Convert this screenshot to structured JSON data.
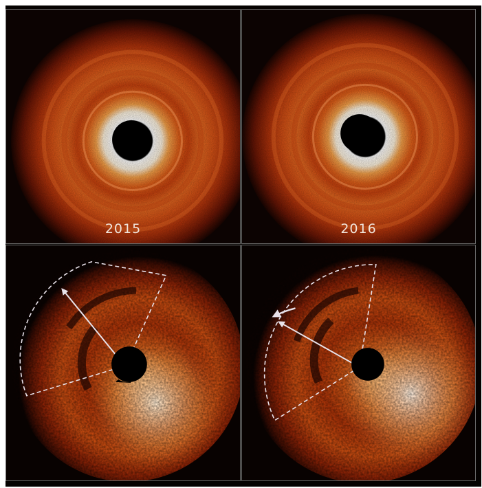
{
  "panels": [
    {
      "id": "top-left",
      "year_label": "2015"
    },
    {
      "id": "top-right",
      "year_label": "2016"
    },
    {
      "id": "bottom-left",
      "year_label": ""
    },
    {
      "id": "bottom-right",
      "year_label": ""
    }
  ],
  "colors": {
    "background": "#050201",
    "divider": "#6a6a6a",
    "disk_outer": "#b8380c",
    "disk_mid": "#f08228",
    "disk_inner": "#fff6e6",
    "occulter": "#000000",
    "annotation": "#e8e2ea"
  }
}
